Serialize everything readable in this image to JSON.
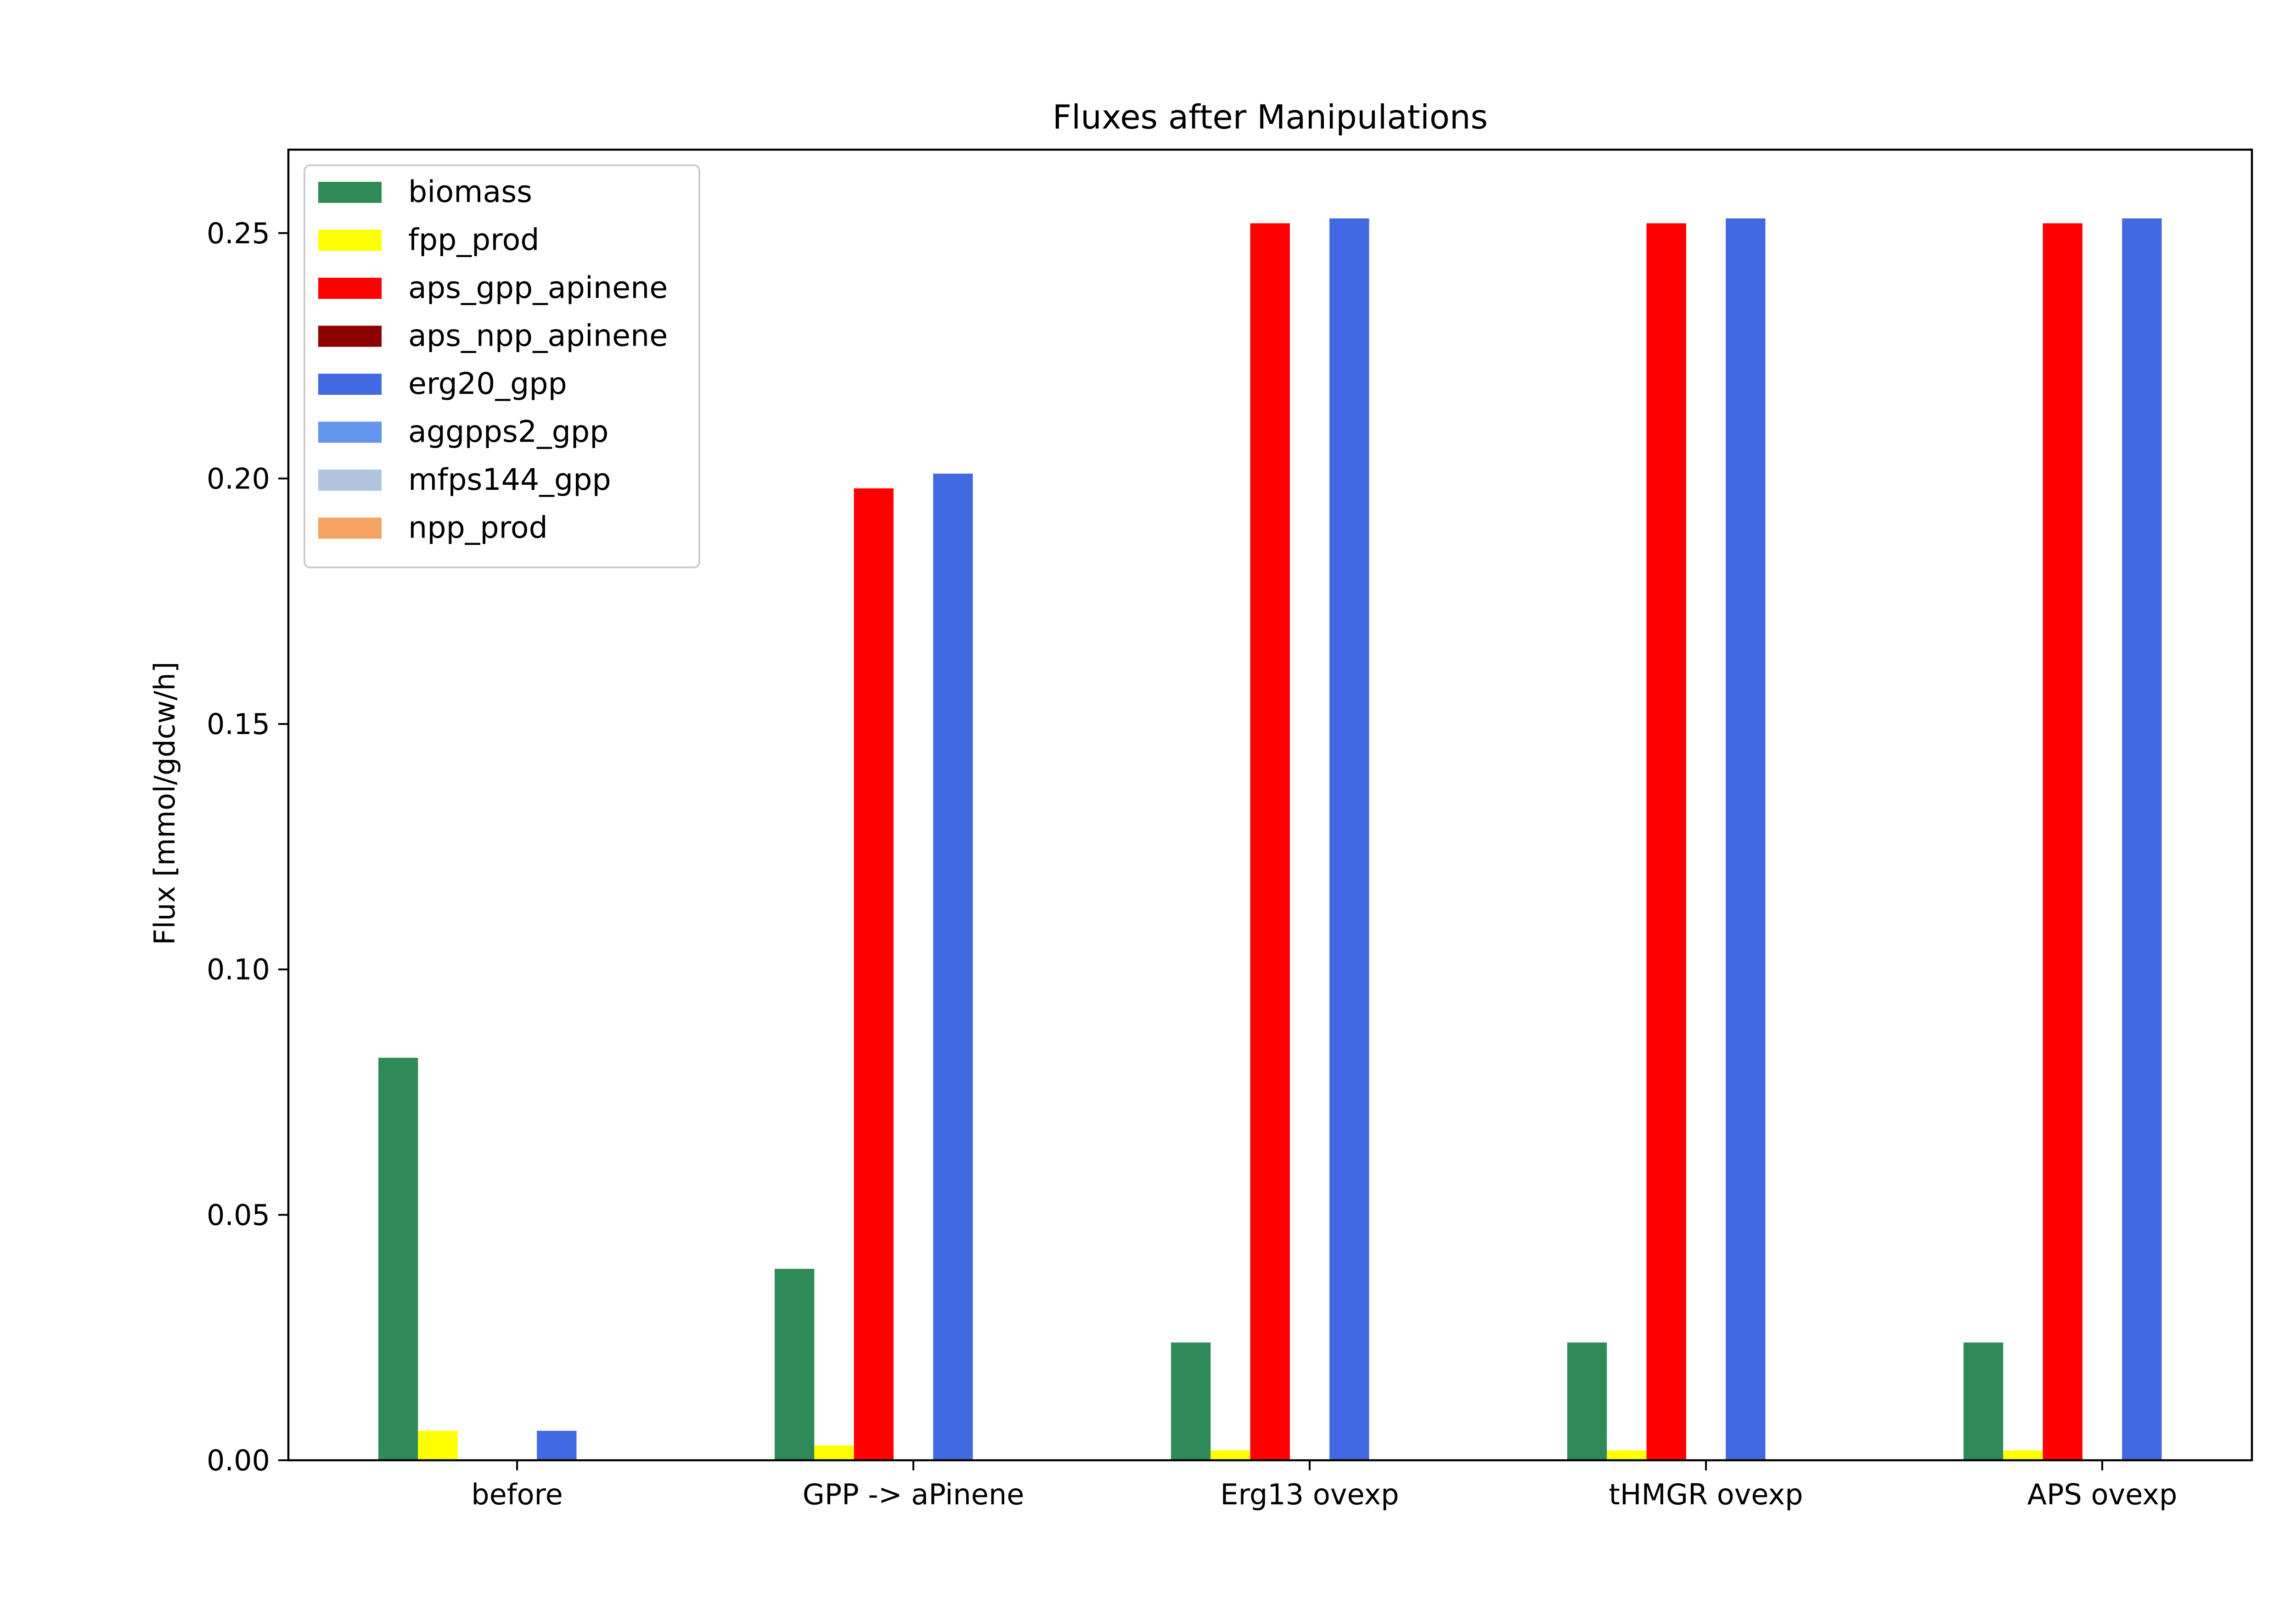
{
  "chart_data": {
    "type": "bar",
    "title": "Fluxes after Manipulations",
    "xlabel": "",
    "ylabel": "Flux [mmol/gdcw/h]",
    "ylim": [
      0,
      0.267
    ],
    "yticks": [
      "0.00",
      "0.05",
      "0.10",
      "0.15",
      "0.20",
      "0.25"
    ],
    "grid": false,
    "legend_position": "top-left",
    "categories": [
      "before",
      "GPP -> aPinene",
      "Erg13 ovexp",
      "tHMGR ovexp",
      "APS ovexp"
    ],
    "series": [
      {
        "name": "biomass",
        "color": "#2e8b57",
        "values": [
          0.082,
          0.039,
          0.024,
          0.024,
          0.024
        ]
      },
      {
        "name": "fpp_prod",
        "color": "#ffff00",
        "values": [
          0.006,
          0.003,
          0.002,
          0.002,
          0.002
        ]
      },
      {
        "name": "aps_gpp_apinene",
        "color": "#ff0000",
        "values": [
          0.0,
          0.198,
          0.252,
          0.252,
          0.252
        ]
      },
      {
        "name": "aps_npp_apinene",
        "color": "#8b0000",
        "values": [
          0.0,
          0.0,
          0.0,
          0.0,
          0.0
        ]
      },
      {
        "name": "erg20_gpp",
        "color": "#4169e1",
        "values": [
          0.006,
          0.201,
          0.253,
          0.253,
          0.253
        ]
      },
      {
        "name": "aggpps2_gpp",
        "color": "#6495ed",
        "values": [
          0.0,
          0.0,
          0.0,
          0.0,
          0.0
        ]
      },
      {
        "name": "mfps144_gpp",
        "color": "#b0c4de",
        "values": [
          0.0,
          0.0,
          0.0,
          0.0,
          0.0
        ]
      },
      {
        "name": "npp_prod",
        "color": "#f4a460",
        "values": [
          0.0,
          0.0,
          0.0,
          0.0,
          0.0
        ]
      }
    ]
  }
}
